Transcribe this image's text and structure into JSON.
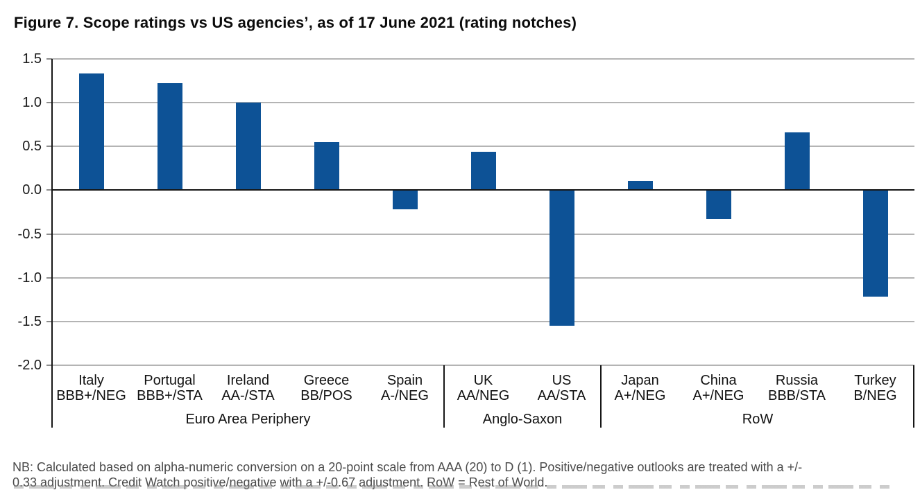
{
  "title": "Figure 7. Scope ratings vs US agencies’, as of 17 June 2021 (rating notches)",
  "note": {
    "line1": "NB: Calculated based on alpha-numeric conversion on a 20-point scale from AAA (20) to D (1). Positive/negative outlooks are treated with a +/-",
    "line2": "0.33 adjustment. Credit Watch positive/negative with a +/-0.67 adjustment. RoW = Rest of World."
  },
  "chart_data": {
    "type": "bar",
    "title": "Figure 7. Scope ratings vs US agencies’, as of 17 June 2021 (rating notches)",
    "categories": [
      "Italy",
      "Portugal",
      "Ireland",
      "Greece",
      "Spain",
      "UK",
      "US",
      "Japan",
      "China",
      "Russia",
      "Turkey"
    ],
    "ratings": [
      "BBB+/NEG",
      "BBB+/STA",
      "AA-/STA",
      "BB/POS",
      "A-/NEG",
      "AA/NEG",
      "AA/STA",
      "A+/NEG",
      "A+/NEG",
      "BBB/STA",
      "B/NEG"
    ],
    "values": [
      1.33,
      1.22,
      1.0,
      0.55,
      -0.22,
      0.44,
      -1.55,
      0.11,
      -0.33,
      0.66,
      -1.22
    ],
    "groups": [
      {
        "label": "Euro Area Periphery",
        "start": 0,
        "count": 5
      },
      {
        "label": "Anglo-Saxon",
        "start": 5,
        "count": 2
      },
      {
        "label": "RoW",
        "start": 7,
        "count": 4
      }
    ],
    "ylim": [
      -2.0,
      1.5
    ],
    "yticks": [
      1.5,
      1.0,
      0.5,
      0.0,
      -0.5,
      -1.0,
      -1.5,
      -2.0
    ],
    "grid": true,
    "legend": false,
    "bar_color": "#0d5296",
    "grid_color": "#b4b4b4",
    "axis_color": "#161616",
    "tick_color": "#8c8c8c"
  }
}
